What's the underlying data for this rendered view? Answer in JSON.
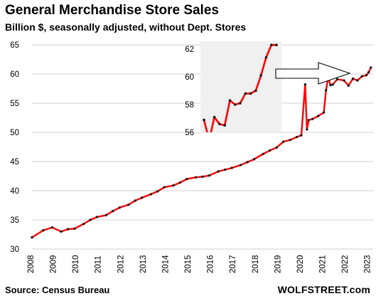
{
  "header": {
    "title": "General Merchandise Store Sales",
    "subtitle": "Billion $, seasonally adjusted, without Dept. Stores"
  },
  "footer": {
    "source": "Source: Census Bureau",
    "brand": "WOLFSTREET.com"
  },
  "colors": {
    "line": "#ff0000",
    "marker": "#1a1a1a",
    "grid": "#d0d0d0",
    "inset_bg": "#f0f0f0",
    "arrow_fill": "#ffffff",
    "arrow_stroke": "#000000"
  },
  "chart_data": [
    {
      "type": "line",
      "title": "General Merchandise Store Sales",
      "subtitle": "Billion $, seasonally adjusted, without Dept. Stores",
      "xlabel": "",
      "ylabel": "",
      "xlim": [
        2008,
        2023.2
      ],
      "ylim": [
        30,
        65
      ],
      "y_ticks": [
        30,
        35,
        40,
        45,
        50,
        55,
        60,
        65
      ],
      "x_ticks": [
        "2008",
        "2009",
        "2010",
        "2011",
        "2012",
        "2013",
        "2014",
        "2015",
        "2016",
        "2017",
        "2018",
        "2019",
        "2020",
        "2021",
        "2022",
        "2023"
      ],
      "grid": "horizontal",
      "markers": true,
      "series": [
        {
          "x": [
            2008.0,
            2008.5,
            2008.9,
            2009.3,
            2009.6,
            2009.9,
            2010.3,
            2010.6,
            2010.9,
            2011.3,
            2011.6,
            2011.9,
            2012.3,
            2012.6,
            2012.9,
            2013.3,
            2013.6,
            2013.9,
            2014.3,
            2014.6,
            2014.9,
            2015.3,
            2015.6,
            2015.9,
            2016.3,
            2016.6,
            2016.9,
            2017.3,
            2017.6,
            2017.9,
            2018.3,
            2018.6,
            2018.9,
            2019.2,
            2019.5,
            2019.8,
            2020.0,
            2020.17,
            2020.25,
            2020.33,
            2020.5,
            2020.75,
            2021.0,
            2021.1,
            2021.2,
            2021.3,
            2021.4,
            2021.6,
            2021.9,
            2022.1,
            2022.3,
            2022.5,
            2022.7,
            2022.9,
            2023.0,
            2023.1
          ],
          "values": [
            32.0,
            33.2,
            33.7,
            33.0,
            33.4,
            33.5,
            34.3,
            35.0,
            35.5,
            35.8,
            36.5,
            37.1,
            37.6,
            38.3,
            38.8,
            39.4,
            39.9,
            40.6,
            40.9,
            41.4,
            42.0,
            42.3,
            42.4,
            42.6,
            43.3,
            43.6,
            43.9,
            44.4,
            44.9,
            45.4,
            46.3,
            46.9,
            47.4,
            48.4,
            48.7,
            49.2,
            49.5,
            58.2,
            50.5,
            52.1,
            52.3,
            52.8,
            53.4,
            57.2,
            59.5,
            58.1,
            58.2,
            59.1,
            58.9,
            58.0,
            59.2,
            58.9,
            59.6,
            59.8,
            60.3,
            61.1
          ]
        }
      ]
    },
    {
      "type": "line",
      "title": "",
      "xlabel": "",
      "ylabel": "",
      "ylim": [
        56,
        63
      ],
      "y_ticks": [
        56,
        58,
        60,
        62
      ],
      "markers": true,
      "series": [
        {
          "x": [
            1,
            2,
            3,
            4,
            5,
            6,
            7,
            8,
            9,
            10,
            11,
            12,
            13,
            14,
            15
          ],
          "values": [
            56.9,
            55.4,
            57.1,
            56.6,
            56.5,
            58.3,
            58.0,
            58.1,
            58.8,
            58.8,
            59.0,
            60.1,
            61.4,
            62.3,
            62.3
          ]
        }
      ]
    }
  ]
}
